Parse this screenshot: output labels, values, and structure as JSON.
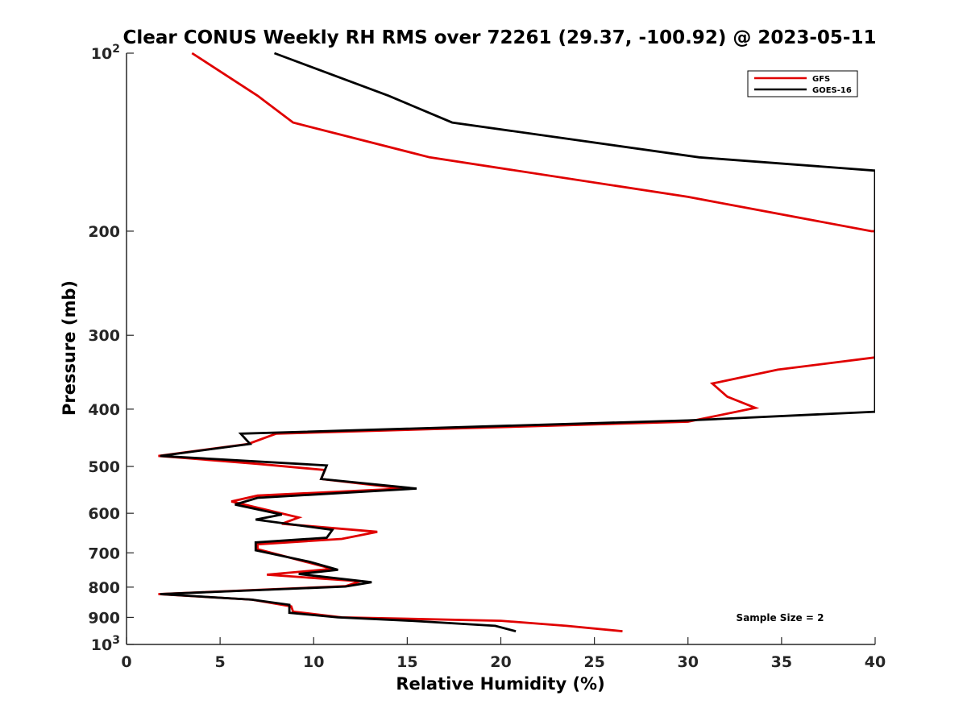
{
  "chart_data": {
    "type": "line",
    "title": "Clear CONUS Weekly RH RMS over 72261 (29.37, -100.92) @ 2023-05-11",
    "xlabel": "Relative Humidity (%)",
    "ylabel": "Pressure (mb)",
    "xlim": [
      0,
      40
    ],
    "ylim": [
      100,
      1000
    ],
    "y_scale": "log",
    "y_reversed": true,
    "grid": false,
    "legend_position": "top-right",
    "x_ticks": [
      0,
      5,
      10,
      15,
      20,
      25,
      30,
      35,
      40
    ],
    "y_ticks": [
      {
        "value": 100,
        "base": "10",
        "exp": "2"
      },
      {
        "value": 200,
        "label": "200"
      },
      {
        "value": 300,
        "label": "300"
      },
      {
        "value": 400,
        "label": "400"
      },
      {
        "value": 500,
        "label": "500"
      },
      {
        "value": 600,
        "label": "600"
      },
      {
        "value": 700,
        "label": "700"
      },
      {
        "value": 800,
        "label": "800"
      },
      {
        "value": 900,
        "label": "900"
      },
      {
        "value": 1000,
        "base": "10",
        "exp": "3"
      }
    ],
    "annotation": "Sample Size = 2",
    "series": [
      {
        "name": "GFS",
        "color": "#e00000",
        "points": [
          [
            3.5,
            100
          ],
          [
            7.0,
            118
          ],
          [
            8.9,
            131
          ],
          [
            16.2,
            150
          ],
          [
            30.0,
            175
          ],
          [
            39.8,
            200
          ],
          [
            40.0,
            200
          ],
          [
            40.0,
            327
          ],
          [
            34.8,
            343
          ],
          [
            31.3,
            362
          ],
          [
            32.1,
            381
          ],
          [
            33.6,
            398
          ],
          [
            30.0,
            420
          ],
          [
            8.0,
            440
          ],
          [
            6.5,
            458
          ],
          [
            1.7,
            480
          ],
          [
            7.0,
            495
          ],
          [
            10.6,
            507
          ],
          [
            10.4,
            525
          ],
          [
            14.8,
            545
          ],
          [
            7.0,
            560
          ],
          [
            5.6,
            573
          ],
          [
            9.2,
            610
          ],
          [
            8.3,
            625
          ],
          [
            13.4,
            645
          ],
          [
            11.5,
            663
          ],
          [
            7.0,
            677
          ],
          [
            7.0,
            690
          ],
          [
            9.8,
            728
          ],
          [
            11.0,
            745
          ],
          [
            7.5,
            762
          ],
          [
            12.5,
            782
          ],
          [
            11.7,
            797
          ],
          [
            1.7,
            822
          ],
          [
            6.7,
            840
          ],
          [
            8.8,
            862
          ],
          [
            8.9,
            880
          ],
          [
            11.5,
            900
          ],
          [
            20.0,
            912
          ],
          [
            23.5,
            930
          ],
          [
            26.5,
            950
          ]
        ]
      },
      {
        "name": "GOES-16",
        "color": "#000000",
        "points": [
          [
            7.9,
            100
          ],
          [
            14.0,
            118
          ],
          [
            17.4,
            131
          ],
          [
            30.6,
            150
          ],
          [
            40.0,
            158
          ],
          [
            40.0,
            404
          ],
          [
            30.0,
            418
          ],
          [
            6.1,
            440
          ],
          [
            6.6,
            458
          ],
          [
            1.8,
            480
          ],
          [
            10.7,
            498
          ],
          [
            10.4,
            525
          ],
          [
            15.5,
            545
          ],
          [
            7.0,
            565
          ],
          [
            5.8,
            580
          ],
          [
            8.3,
            603
          ],
          [
            6.9,
            615
          ],
          [
            11.0,
            640
          ],
          [
            10.7,
            660
          ],
          [
            6.9,
            672
          ],
          [
            6.9,
            693
          ],
          [
            9.8,
            725
          ],
          [
            11.3,
            748
          ],
          [
            9.2,
            760
          ],
          [
            13.1,
            785
          ],
          [
            11.7,
            798
          ],
          [
            1.8,
            822
          ],
          [
            6.7,
            840
          ],
          [
            8.7,
            857
          ],
          [
            8.7,
            884
          ],
          [
            11.3,
            900
          ],
          [
            15.2,
            912
          ],
          [
            19.7,
            930
          ],
          [
            20.8,
            950
          ]
        ]
      }
    ]
  }
}
